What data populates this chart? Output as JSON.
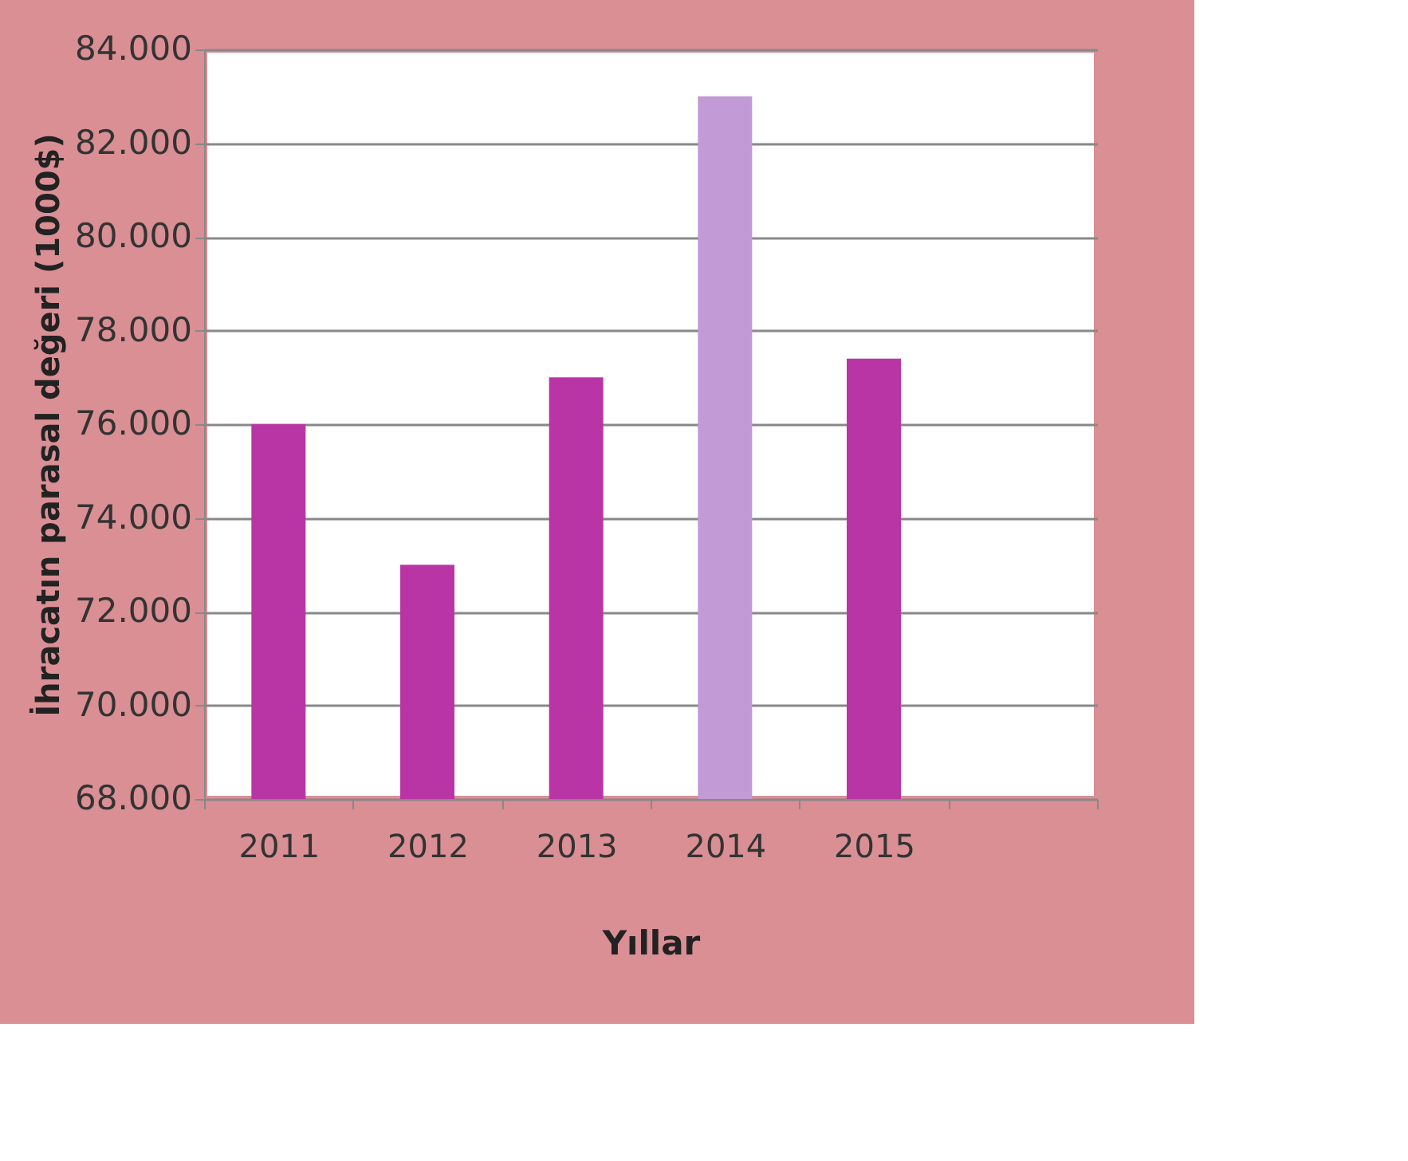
{
  "chart_data": {
    "type": "bar",
    "categories": [
      "2011",
      "2012",
      "2013",
      "2014",
      "2015",
      null
    ],
    "values": [
      76000,
      73000,
      77000,
      83000,
      77400,
      null
    ],
    "colors": [
      "#b935a5",
      "#b935a5",
      "#b935a5",
      "#c19ad6",
      "#b935a5",
      "#b935a5"
    ],
    "xlabel": "Yıllar",
    "ylabel": "İhracatın parasal değeri (1000$)",
    "ylim": [
      68000,
      84000
    ],
    "yticks": [
      {
        "value": 68000,
        "label": "68.000"
      },
      {
        "value": 70000,
        "label": "70.000"
      },
      {
        "value": 72000,
        "label": "72.000"
      },
      {
        "value": 74000,
        "label": "74.000"
      },
      {
        "value": 76000,
        "label": "76.000"
      },
      {
        "value": 78000,
        "label": "78.000"
      },
      {
        "value": 80000,
        "label": "80.000"
      },
      {
        "value": 82000,
        "label": "82.000"
      },
      {
        "value": 84000,
        "label": "84.000"
      }
    ],
    "grid": "y"
  }
}
